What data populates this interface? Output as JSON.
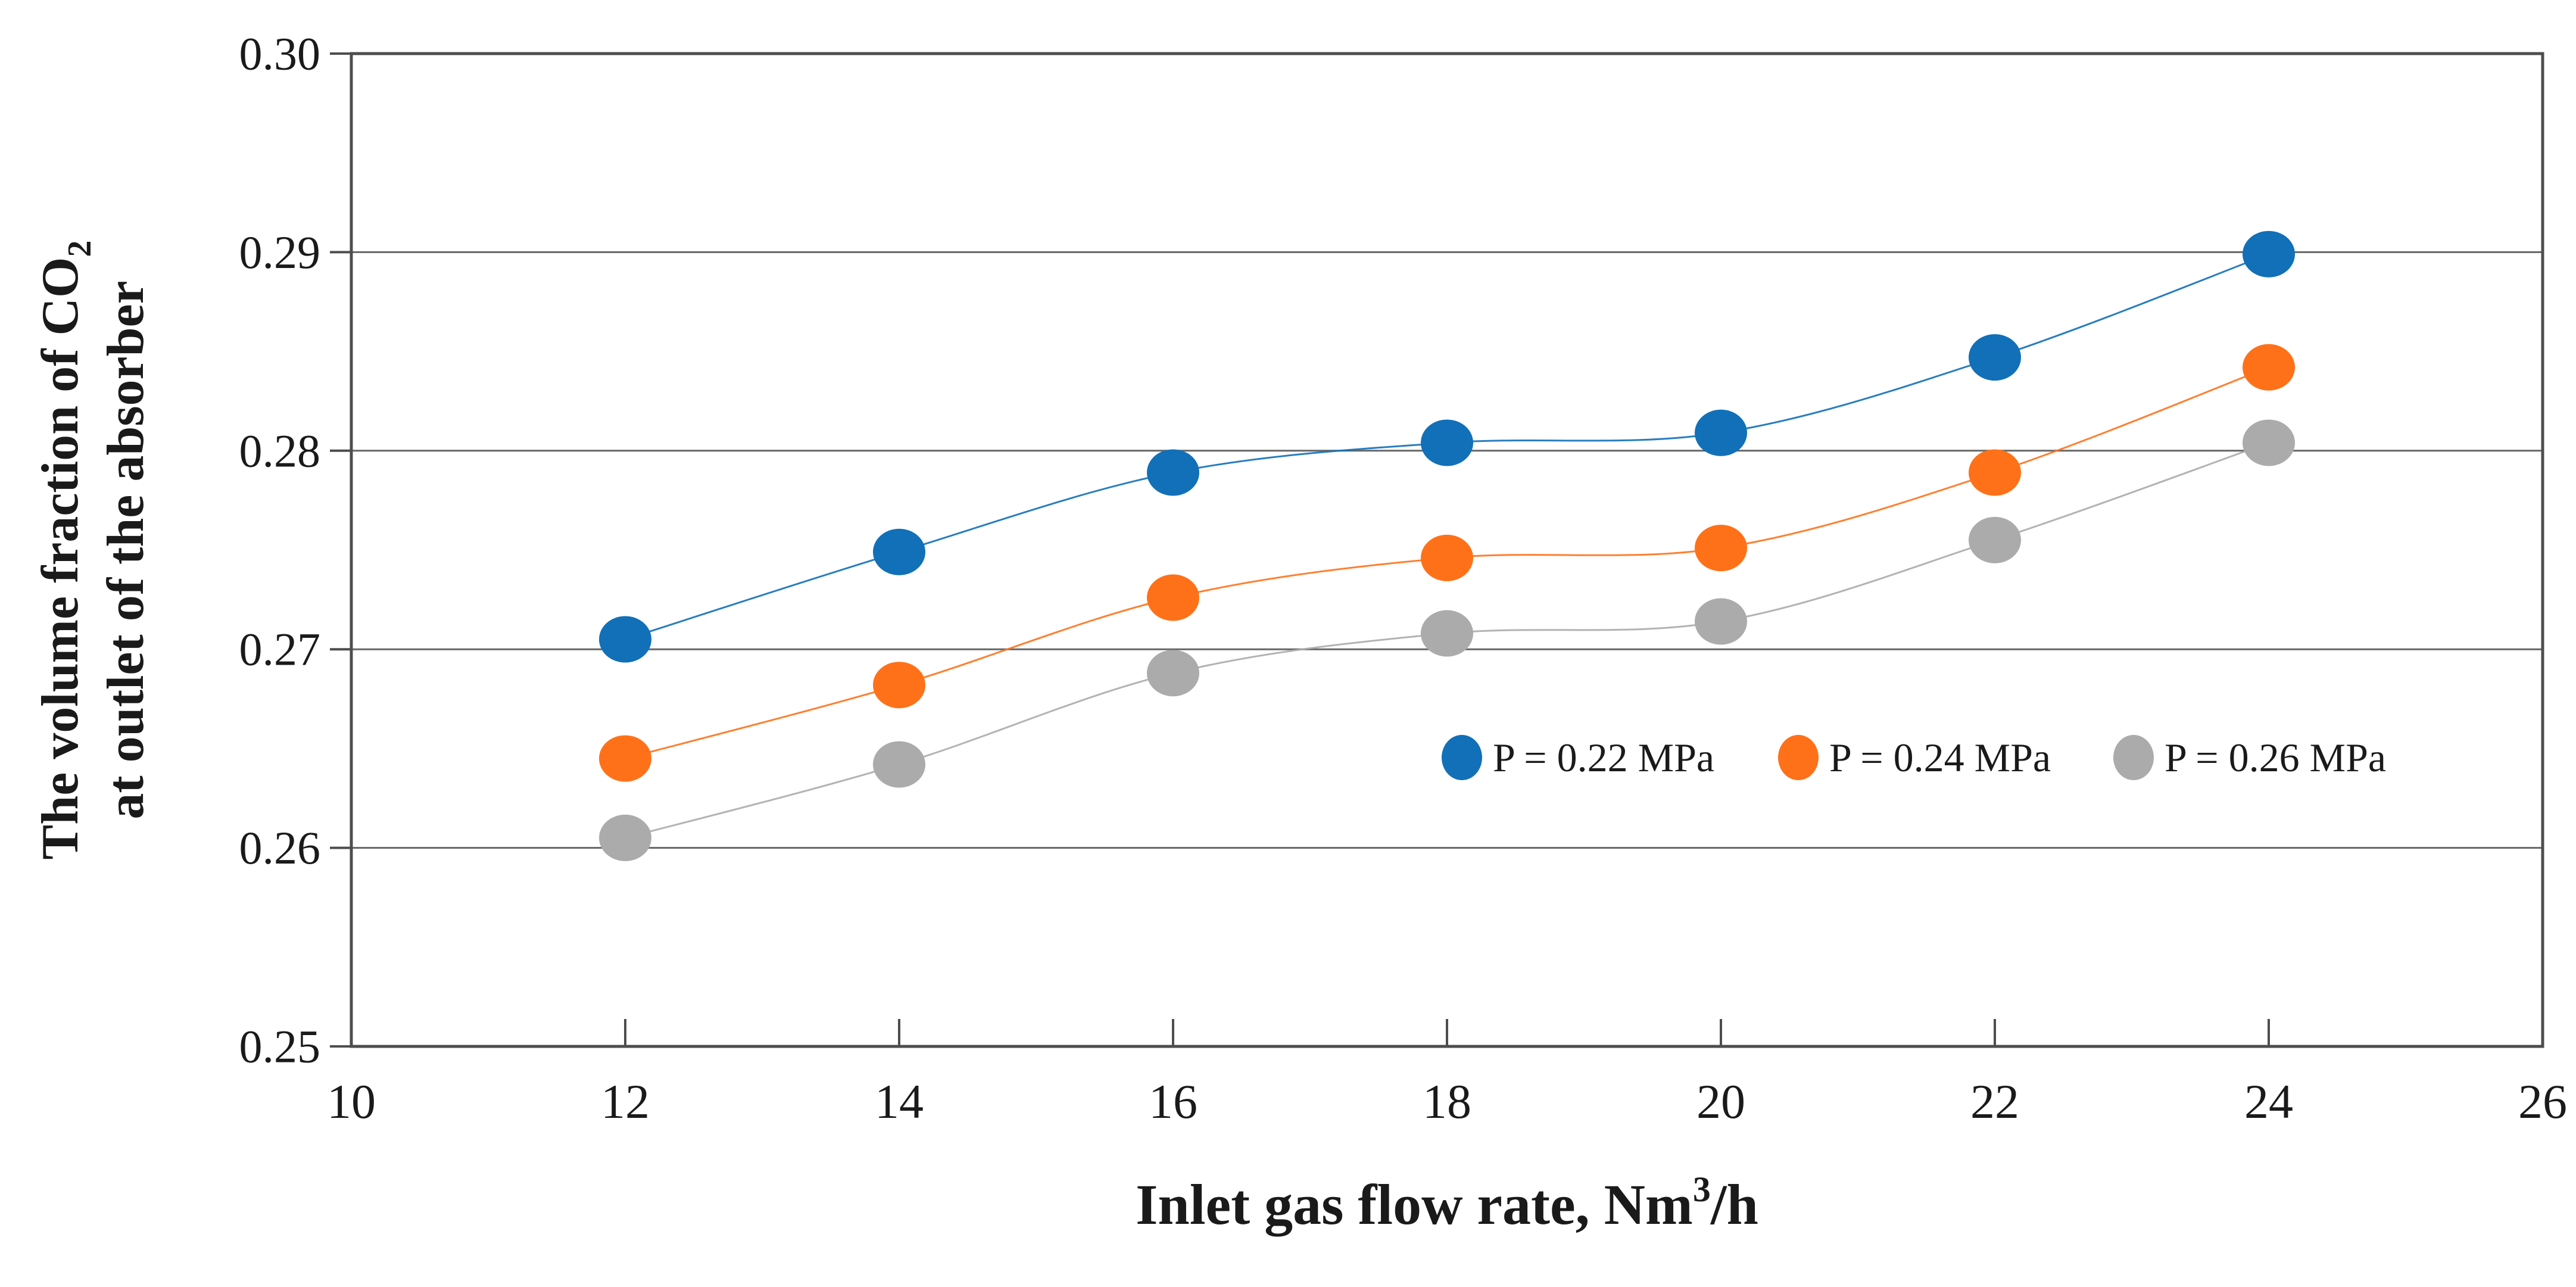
{
  "figure": {
    "background": "#ffffff",
    "text_color": "#1a1a1a",
    "grid_color": "#666666",
    "border_color": "#4d4d4d"
  },
  "chart_data": {
    "type": "line",
    "x": [
      12,
      14,
      16,
      18,
      20,
      22,
      24
    ],
    "series": [
      {
        "name": "P = 0.22 MPa",
        "color": "#1170b8",
        "values": [
          0.2705,
          0.2749,
          0.2789,
          0.2804,
          0.2809,
          0.2847,
          0.2899
        ]
      },
      {
        "name": "P = 0.24 MPa",
        "color": "#ff7119",
        "values": [
          0.2645,
          0.2682,
          0.2726,
          0.2746,
          0.2751,
          0.2789,
          0.2842
        ]
      },
      {
        "name": "P = 0.26 MPa",
        "color": "#ababab",
        "values": [
          0.2605,
          0.2642,
          0.2688,
          0.2708,
          0.2714,
          0.2755,
          0.2804
        ]
      }
    ],
    "xlim": [
      10,
      26
    ],
    "ylim": [
      0.25,
      0.3
    ],
    "xticks": [
      "10",
      "12",
      "14",
      "16",
      "18",
      "20",
      "22",
      "24",
      "26"
    ],
    "yticks": [
      "0.25",
      "0.26",
      "0.27",
      "0.28",
      "0.29",
      "0.30"
    ],
    "grid": "horizontal",
    "legend_position": "inside-lower-right",
    "xlabel_prefix": "Inlet gas flow rate, Nm",
    "xlabel_sup": "3",
    "xlabel_suffix": "/h",
    "ylabel_line1": "The volume fraction of CO",
    "ylabel_line1_sub": "2",
    "ylabel_line2": "at outlet of the absorber"
  }
}
